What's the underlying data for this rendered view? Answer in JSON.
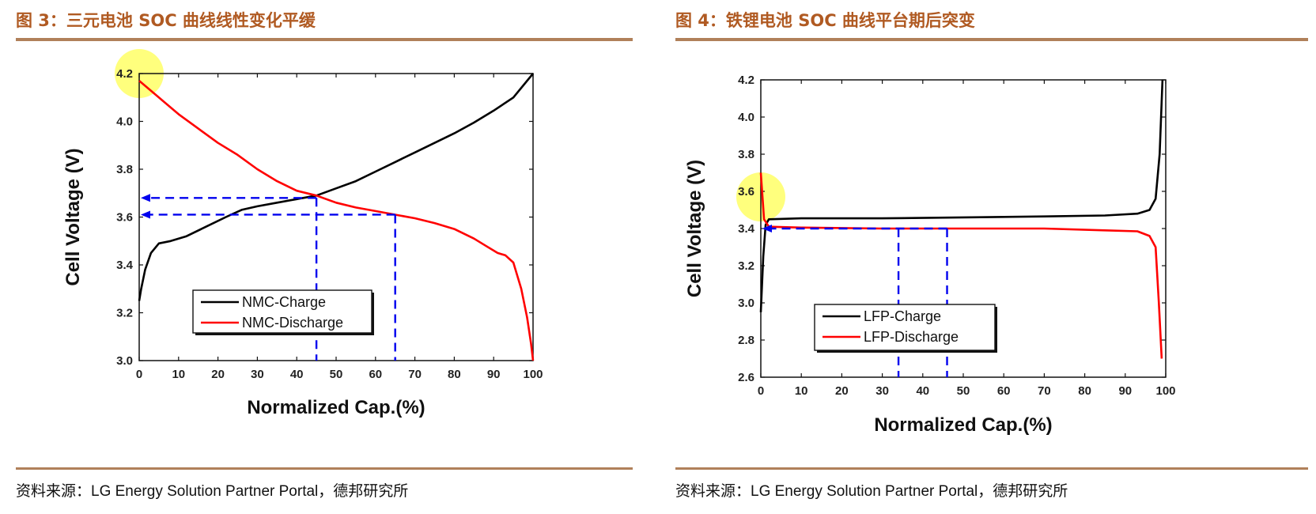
{
  "colors": {
    "title": "#b05a22",
    "rule": "#b0805a",
    "charge": "#000000",
    "discharge": "#ff0000",
    "guide": "#0000ee",
    "highlight": "#ffff66"
  },
  "figures": [
    {
      "title": "图 3：三元电池 SOC 曲线线性变化平缓",
      "source": "资料来源：LG Energy Solution Partner Portal，德邦研究所"
    },
    {
      "title": "图 4：铁锂电池 SOC 曲线平台期后突变",
      "source": "资料来源：LG Energy Solution Partner Portal，德邦研究所"
    }
  ],
  "chart_data": [
    {
      "type": "line",
      "xlabel": "Normalized Cap.(%)",
      "ylabel": "Cell Voltage (V)",
      "xlim": [
        0,
        100
      ],
      "ylim": [
        3.0,
        4.2
      ],
      "xticks": [
        "0",
        "10",
        "20",
        "30",
        "40",
        "50",
        "60",
        "70",
        "80",
        "90",
        "100"
      ],
      "yticks": [
        "3.0",
        "3.2",
        "3.4",
        "3.6",
        "3.8",
        "4.0",
        "4.2"
      ],
      "legend": "lower-left",
      "series": [
        {
          "name": "NMC-Charge",
          "color": "#000000",
          "points": [
            [
              0,
              3.25
            ],
            [
              0.5,
              3.3
            ],
            [
              1.5,
              3.38
            ],
            [
              3,
              3.45
            ],
            [
              5,
              3.49
            ],
            [
              8,
              3.5
            ],
            [
              12,
              3.52
            ],
            [
              17,
              3.56
            ],
            [
              22,
              3.6
            ],
            [
              26,
              3.63
            ],
            [
              30,
              3.645
            ],
            [
              35,
              3.66
            ],
            [
              40,
              3.675
            ],
            [
              45,
              3.69
            ],
            [
              50,
              3.72
            ],
            [
              55,
              3.75
            ],
            [
              60,
              3.79
            ],
            [
              65,
              3.83
            ],
            [
              70,
              3.87
            ],
            [
              75,
              3.91
            ],
            [
              80,
              3.95
            ],
            [
              85,
              3.995
            ],
            [
              90,
              4.045
            ],
            [
              95,
              4.1
            ],
            [
              100,
              4.2
            ]
          ]
        },
        {
          "name": "NMC-Discharge",
          "color": "#ff0000",
          "points": [
            [
              0,
              4.17
            ],
            [
              5,
              4.1
            ],
            [
              10,
              4.03
            ],
            [
              15,
              3.97
            ],
            [
              20,
              3.91
            ],
            [
              25,
              3.86
            ],
            [
              30,
              3.8
            ],
            [
              35,
              3.75
            ],
            [
              40,
              3.71
            ],
            [
              45,
              3.69
            ],
            [
              50,
              3.66
            ],
            [
              55,
              3.64
            ],
            [
              60,
              3.625
            ],
            [
              65,
              3.61
            ],
            [
              70,
              3.595
            ],
            [
              75,
              3.575
            ],
            [
              80,
              3.55
            ],
            [
              85,
              3.51
            ],
            [
              88,
              3.48
            ],
            [
              91,
              3.45
            ],
            [
              93,
              3.44
            ],
            [
              95,
              3.41
            ],
            [
              97,
              3.3
            ],
            [
              98.5,
              3.18
            ],
            [
              99.5,
              3.07
            ],
            [
              100,
              3.0
            ]
          ]
        }
      ],
      "guides": {
        "voltages": [
          3.68,
          3.61
        ],
        "capacities": [
          45,
          65
        ]
      },
      "highlight": {
        "x": 0,
        "y": 4.2
      }
    },
    {
      "type": "line",
      "xlabel": "Normalized Cap.(%)",
      "ylabel": "Cell Voltage (V)",
      "xlim": [
        0,
        100
      ],
      "ylim": [
        2.6,
        4.2
      ],
      "xticks": [
        "0",
        "10",
        "20",
        "30",
        "40",
        "50",
        "60",
        "70",
        "80",
        "90",
        "100"
      ],
      "yticks": [
        "2.6",
        "2.8",
        "3.0",
        "3.2",
        "3.4",
        "3.6",
        "3.8",
        "4.0",
        "4.2"
      ],
      "legend": "lower-left",
      "series": [
        {
          "name": "LFP-Charge",
          "color": "#000000",
          "points": [
            [
              0,
              2.95
            ],
            [
              0.6,
              3.25
            ],
            [
              1.2,
              3.42
            ],
            [
              2,
              3.45
            ],
            [
              10,
              3.455
            ],
            [
              30,
              3.455
            ],
            [
              50,
              3.46
            ],
            [
              70,
              3.465
            ],
            [
              85,
              3.47
            ],
            [
              93,
              3.48
            ],
            [
              96,
              3.5
            ],
            [
              97.5,
              3.56
            ],
            [
              98.5,
              3.8
            ],
            [
              99.2,
              4.2
            ]
          ]
        },
        {
          "name": "LFP-Discharge",
          "color": "#ff0000",
          "points": [
            [
              0,
              3.7
            ],
            [
              0.8,
              3.45
            ],
            [
              2,
              3.41
            ],
            [
              10,
              3.405
            ],
            [
              30,
              3.4
            ],
            [
              50,
              3.4
            ],
            [
              70,
              3.4
            ],
            [
              85,
              3.39
            ],
            [
              93,
              3.385
            ],
            [
              96,
              3.36
            ],
            [
              97.5,
              3.3
            ],
            [
              98.3,
              3.0
            ],
            [
              99,
              2.7
            ]
          ]
        }
      ],
      "guides": {
        "voltages": [
          3.4
        ],
        "capacities": [
          34,
          46
        ]
      },
      "highlight": {
        "x": 0,
        "y": 3.57
      }
    }
  ]
}
